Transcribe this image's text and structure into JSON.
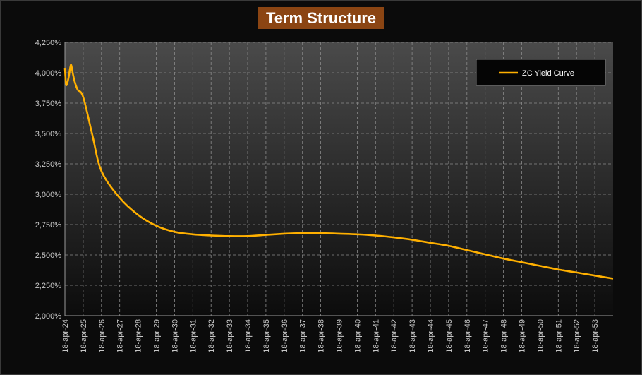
{
  "chart_data": {
    "type": "line",
    "title": "Term Structure",
    "xlabel": "",
    "ylabel": "",
    "ylim": [
      2.0,
      4.25
    ],
    "grid": true,
    "legend_position": "top-right",
    "y_ticks": [
      "2,000%",
      "2,250%",
      "2,500%",
      "2,750%",
      "3,000%",
      "3,250%",
      "3,500%",
      "3,750%",
      "4,000%",
      "4,250%"
    ],
    "x_ticks": [
      "18-apr-24",
      "18-apr-25",
      "18-apr-26",
      "18-apr-27",
      "18-apr-28",
      "18-apr-29",
      "18-apr-30",
      "18-apr-31",
      "18-apr-32",
      "18-apr-33",
      "18-apr-34",
      "18-apr-35",
      "18-apr-36",
      "18-apr-37",
      "18-apr-38",
      "18-apr-39",
      "18-apr-40",
      "18-apr-41",
      "18-apr-42",
      "18-apr-43",
      "18-apr-44",
      "18-apr-45",
      "18-apr-46",
      "18-apr-47",
      "18-apr-48",
      "18-apr-49",
      "18-apr-50",
      "18-apr-51",
      "18-apr-52",
      "18-apr-53"
    ],
    "series": [
      {
        "name": "ZC Yield Curve",
        "color": "#ffb000",
        "x": [
          2024.0,
          2024.05,
          2024.1,
          2024.2,
          2024.3,
          2024.35,
          2024.45,
          2024.55,
          2024.7,
          2025.0,
          2025.5,
          2026.0,
          2027.0,
          2028.0,
          2029.0,
          2030.0,
          2031.0,
          2032.0,
          2033.0,
          2034.0,
          2035.0,
          2036.0,
          2037.0,
          2038.0,
          2039.0,
          2040.0,
          2041.0,
          2042.0,
          2043.0,
          2044.0,
          2045.0,
          2046.0,
          2047.0,
          2048.0,
          2049.0,
          2050.0,
          2051.0,
          2052.0,
          2053.0,
          2054.0
        ],
        "y": [
          4.04,
          3.92,
          3.9,
          3.96,
          4.05,
          4.06,
          3.98,
          3.92,
          3.86,
          3.8,
          3.49,
          3.19,
          2.97,
          2.83,
          2.74,
          2.69,
          2.67,
          2.66,
          2.655,
          2.655,
          2.665,
          2.675,
          2.68,
          2.68,
          2.675,
          2.67,
          2.66,
          2.645,
          2.625,
          2.6,
          2.575,
          2.54,
          2.505,
          2.47,
          2.44,
          2.41,
          2.38,
          2.355,
          2.33,
          2.305
        ]
      }
    ]
  }
}
